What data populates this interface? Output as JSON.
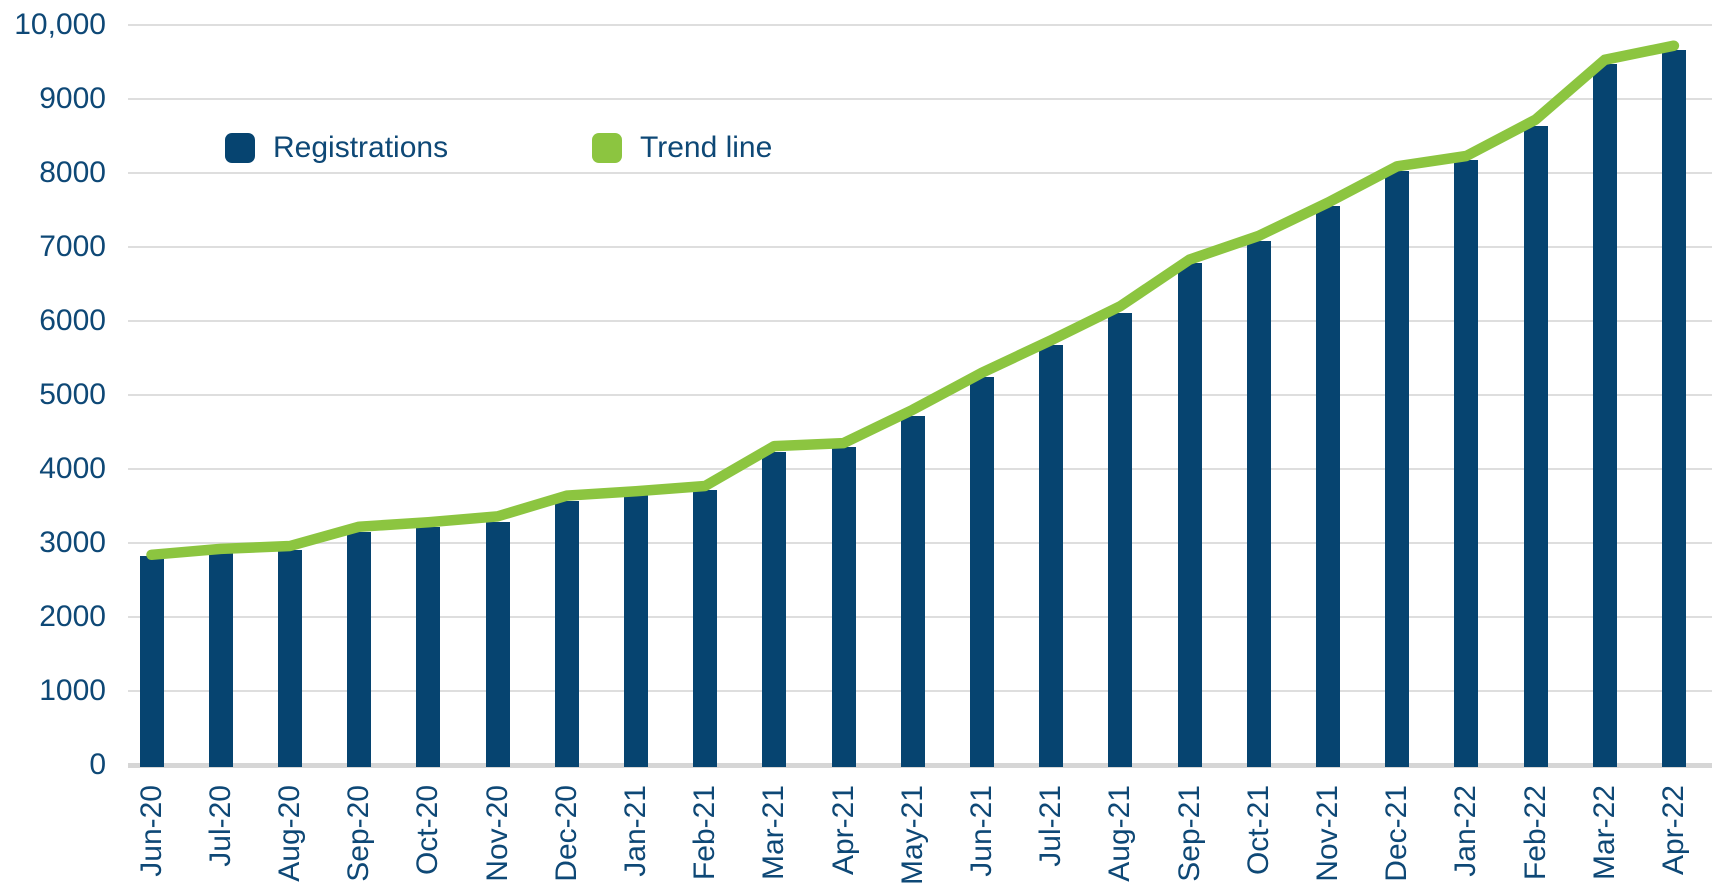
{
  "chart_data": {
    "type": "bar",
    "title": "",
    "xlabel": "",
    "ylabel": "",
    "categories": [
      "Jun-20",
      "Jul-20",
      "Aug-20",
      "Sep-20",
      "Oct-20",
      "Nov-20",
      "Dec-20",
      "Jan-21",
      "Feb-21",
      "Mar-21",
      "Apr-21",
      "May-21",
      "Jun-21",
      "Jul-21",
      "Aug-21",
      "Sep-21",
      "Oct-21",
      "Nov-21",
      "Dec-21",
      "Jan-22",
      "Feb-22",
      "Mar-22",
      "Apr-22"
    ],
    "series": [
      {
        "name": "Registrations",
        "type": "bar",
        "color": "#064470",
        "values": [
          2820,
          2870,
          2910,
          3150,
          3210,
          3290,
          3570,
          3650,
          3720,
          4230,
          4300,
          4720,
          5240,
          5670,
          6110,
          6780,
          7080,
          7550,
          8030,
          8180,
          8640,
          9470,
          9660
        ]
      },
      {
        "name": "Trend line",
        "type": "line",
        "color": "#8cc540",
        "values": [
          2840,
          2920,
          2960,
          3220,
          3280,
          3360,
          3640,
          3700,
          3770,
          4310,
          4350,
          4800,
          5300,
          5740,
          6200,
          6830,
          7150,
          7600,
          8090,
          8230,
          8720,
          9530,
          9720
        ]
      }
    ],
    "ylim": [
      0,
      10000
    ],
    "ytick_values": [
      0,
      1000,
      2000,
      3000,
      4000,
      5000,
      6000,
      7000,
      8000,
      9000,
      10000
    ],
    "ytick_labels": [
      "0",
      "1000",
      "2000",
      "3000",
      "4000",
      "5000",
      "6000",
      "7000",
      "8000",
      "9000",
      "10,000"
    ],
    "grid": "horizontal",
    "legend_position": "top-left-inside"
  },
  "colors": {
    "text": "#0e4876",
    "gridline": "#dedede",
    "axis_line": "#d6d6d6",
    "background": "#ffffff"
  }
}
